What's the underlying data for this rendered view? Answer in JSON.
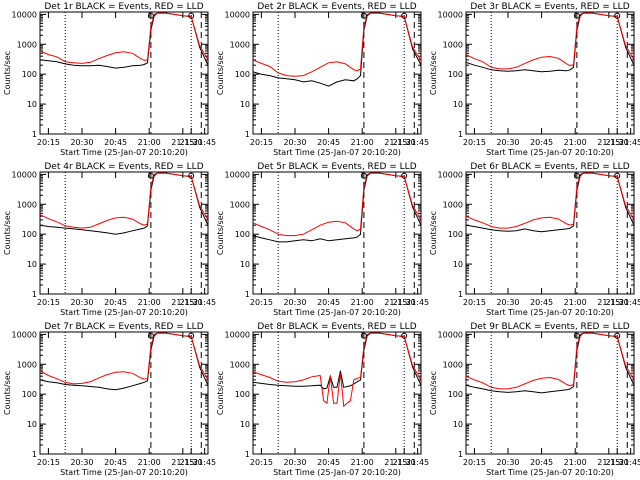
{
  "colors": {
    "events": "#000000",
    "lld": "#ff0000",
    "axes": "#000000",
    "background": "#ffffff"
  },
  "common": {
    "ylabel": "Counts/sec",
    "xlabel": "Start Time (25-Jan-07 20:10:20)",
    "y_scale": "log",
    "ylim": [
      1,
      12000
    ],
    "y_ticks": [
      1,
      10,
      100,
      1000,
      10000
    ],
    "y_tick_labels": [
      "1",
      "10",
      "100",
      "1000",
      "10000"
    ],
    "xlim": [
      0,
      100
    ],
    "x_ticks": [
      5,
      25,
      45,
      65,
      85
    ],
    "x_tick_labels_default": [
      "20:15",
      "20:30",
      "20:45",
      "21:00",
      "21:15"
    ],
    "x_tick_labels_alt": [
      "20:15",
      "20:30",
      "20:45",
      "21:00",
      "21:15"
    ],
    "extra_x_labels": [
      "21:30",
      "21:45"
    ],
    "dotted_lines_x": [
      15,
      90
    ],
    "dashed_lines_x": [
      66,
      96
    ]
  },
  "chart_data": [
    {
      "type": "line",
      "title": "Det 1r BLACK = Events, RED = LLD",
      "x_tick_labels": [
        "20:15",
        "20:30",
        "20:45",
        "21:00",
        "21:15"
      ],
      "series": [
        {
          "name": "Events",
          "x": [
            0,
            5,
            10,
            15,
            20,
            25,
            30,
            35,
            40,
            45,
            50,
            55,
            60,
            62,
            64,
            66,
            68,
            70,
            75,
            80,
            85,
            90,
            95,
            100
          ],
          "values": [
            300,
            280,
            260,
            220,
            200,
            190,
            190,
            200,
            180,
            160,
            170,
            190,
            200,
            210,
            240,
            3000,
            9000,
            11000,
            11000,
            10000,
            9000,
            8500,
            800,
            200
          ]
        },
        {
          "name": "LLD",
          "x": [
            0,
            5,
            10,
            15,
            20,
            25,
            30,
            35,
            40,
            45,
            50,
            55,
            60,
            62,
            64,
            66,
            68,
            70,
            75,
            80,
            85,
            90,
            95,
            100
          ],
          "values": [
            600,
            450,
            380,
            260,
            240,
            230,
            250,
            330,
            420,
            520,
            560,
            500,
            330,
            290,
            300,
            4000,
            10000,
            11000,
            11000,
            10000,
            9000,
            8500,
            900,
            300
          ]
        }
      ]
    },
    {
      "type": "line",
      "title": "Det 2r BLACK = Events, RED = LLD",
      "x_tick_labels": [
        "20:15",
        "20:30",
        "20:45",
        "21:00",
        "21:15"
      ],
      "series": [
        {
          "name": "Events",
          "x": [
            0,
            5,
            10,
            15,
            20,
            25,
            30,
            35,
            40,
            45,
            50,
            55,
            60,
            62,
            64,
            66,
            68,
            70,
            75,
            80,
            85,
            90,
            95,
            100
          ],
          "values": [
            120,
            100,
            90,
            75,
            70,
            65,
            55,
            60,
            50,
            40,
            55,
            65,
            60,
            70,
            90,
            3000,
            9000,
            11000,
            11000,
            10000,
            9000,
            8500,
            700,
            200
          ]
        },
        {
          "name": "LLD",
          "x": [
            0,
            5,
            10,
            15,
            20,
            25,
            30,
            35,
            40,
            45,
            50,
            55,
            60,
            62,
            64,
            66,
            68,
            70,
            75,
            80,
            85,
            90,
            95,
            100
          ],
          "values": [
            300,
            230,
            180,
            110,
            90,
            85,
            90,
            120,
            170,
            240,
            260,
            220,
            140,
            130,
            150,
            4000,
            10000,
            11000,
            11000,
            10000,
            9000,
            8500,
            800,
            280
          ]
        }
      ]
    },
    {
      "type": "line",
      "title": "Det 3r BLACK = Events, RED = LLD",
      "x_tick_labels": [
        "20:15",
        "20:30",
        "20:45",
        "21:00",
        "21:15"
      ],
      "series": [
        {
          "name": "Events",
          "x": [
            0,
            5,
            10,
            15,
            20,
            25,
            30,
            35,
            40,
            45,
            50,
            55,
            60,
            62,
            64,
            66,
            68,
            70,
            75,
            80,
            85,
            90,
            95,
            100
          ],
          "values": [
            250,
            200,
            170,
            140,
            130,
            125,
            130,
            140,
            130,
            120,
            125,
            135,
            130,
            140,
            170,
            3000,
            9000,
            11000,
            11000,
            10000,
            9000,
            8500,
            800,
            200
          ]
        },
        {
          "name": "LLD",
          "x": [
            0,
            5,
            10,
            15,
            20,
            25,
            30,
            35,
            40,
            45,
            50,
            55,
            60,
            62,
            64,
            66,
            68,
            70,
            75,
            80,
            85,
            90,
            95,
            100
          ],
          "values": [
            450,
            330,
            260,
            170,
            150,
            150,
            170,
            230,
            300,
            370,
            390,
            340,
            220,
            190,
            210,
            4000,
            10000,
            11000,
            11000,
            10000,
            9000,
            8500,
            900,
            300
          ]
        }
      ]
    },
    {
      "type": "line",
      "title": "Det 4r BLACK = Events, RED = LLD",
      "x_tick_labels": [
        "20:15",
        "20:30",
        "20:45",
        "21:00",
        "21:15"
      ],
      "series": [
        {
          "name": "Events",
          "x": [
            0,
            5,
            10,
            15,
            20,
            25,
            30,
            35,
            40,
            45,
            50,
            55,
            60,
            62,
            64,
            66,
            68,
            70,
            75,
            80,
            85,
            90,
            95,
            100
          ],
          "values": [
            200,
            180,
            170,
            160,
            150,
            140,
            130,
            120,
            110,
            100,
            110,
            130,
            150,
            160,
            190,
            3000,
            9000,
            11000,
            11000,
            10000,
            9000,
            8500,
            800,
            200
          ]
        },
        {
          "name": "LLD",
          "x": [
            0,
            5,
            10,
            15,
            20,
            25,
            30,
            35,
            40,
            45,
            50,
            55,
            60,
            62,
            64,
            66,
            68,
            70,
            75,
            80,
            85,
            90,
            95,
            100
          ],
          "values": [
            450,
            330,
            260,
            190,
            170,
            160,
            170,
            220,
            290,
            350,
            370,
            320,
            220,
            200,
            220,
            4000,
            10000,
            11000,
            11000,
            10000,
            9000,
            8500,
            900,
            300
          ]
        }
      ]
    },
    {
      "type": "line",
      "title": "Det 5r BLACK = Events, RED = LLD",
      "x_tick_labels": [
        "20:15",
        "20:30",
        "20:45",
        "21:00",
        "21:15"
      ],
      "series": [
        {
          "name": "Events",
          "x": [
            0,
            5,
            10,
            15,
            20,
            25,
            30,
            35,
            40,
            45,
            50,
            55,
            60,
            62,
            64,
            66,
            68,
            70,
            75,
            80,
            85,
            90,
            95,
            100
          ],
          "values": [
            90,
            75,
            65,
            55,
            55,
            60,
            65,
            60,
            70,
            60,
            65,
            70,
            75,
            80,
            100,
            3000,
            9000,
            11000,
            11000,
            10000,
            9000,
            8500,
            800,
            200
          ]
        },
        {
          "name": "LLD",
          "x": [
            0,
            5,
            10,
            15,
            20,
            25,
            30,
            35,
            40,
            45,
            50,
            55,
            60,
            62,
            64,
            66,
            68,
            70,
            75,
            80,
            85,
            90,
            95,
            100
          ],
          "values": [
            240,
            180,
            140,
            100,
            90,
            90,
            100,
            140,
            200,
            250,
            270,
            240,
            150,
            130,
            150,
            4000,
            10000,
            11000,
            11000,
            10000,
            9000,
            8500,
            900,
            300
          ]
        }
      ]
    },
    {
      "type": "line",
      "title": "Det 6r BLACK = Events, RED = LLD",
      "x_tick_labels": [
        "20:15",
        "20:30",
        "20:45",
        "21:00",
        "21:15"
      ],
      "series": [
        {
          "name": "Events",
          "x": [
            0,
            5,
            10,
            15,
            20,
            25,
            30,
            35,
            40,
            45,
            50,
            55,
            60,
            62,
            64,
            66,
            68,
            70,
            75,
            80,
            85,
            90,
            95,
            100
          ],
          "values": [
            200,
            180,
            160,
            140,
            130,
            125,
            130,
            150,
            130,
            120,
            130,
            140,
            150,
            160,
            190,
            3000,
            9000,
            11000,
            11000,
            10000,
            9000,
            8500,
            800,
            200
          ]
        },
        {
          "name": "LLD",
          "x": [
            0,
            5,
            10,
            15,
            20,
            25,
            30,
            35,
            40,
            45,
            50,
            55,
            60,
            62,
            64,
            66,
            68,
            70,
            75,
            80,
            85,
            90,
            95,
            100
          ],
          "values": [
            400,
            300,
            240,
            180,
            160,
            160,
            180,
            230,
            300,
            350,
            370,
            320,
            220,
            200,
            220,
            4000,
            10000,
            11000,
            11000,
            10000,
            9000,
            8500,
            900,
            300
          ]
        }
      ]
    },
    {
      "type": "line",
      "title": "Det 7r BLACK = Events, RED = LLD",
      "x_tick_labels": [
        "20:15",
        "20:30",
        "20:45",
        "21:00",
        "21:15"
      ],
      "series": [
        {
          "name": "Events",
          "x": [
            0,
            5,
            10,
            15,
            20,
            25,
            30,
            35,
            40,
            45,
            50,
            55,
            60,
            62,
            64,
            66,
            68,
            70,
            75,
            80,
            85,
            90,
            95,
            100
          ],
          "values": [
            300,
            260,
            240,
            210,
            200,
            190,
            180,
            170,
            150,
            140,
            160,
            190,
            230,
            250,
            280,
            3000,
            9000,
            11000,
            11000,
            10000,
            9000,
            8500,
            800,
            200
          ]
        },
        {
          "name": "LLD",
          "x": [
            0,
            5,
            10,
            15,
            20,
            25,
            30,
            35,
            40,
            45,
            50,
            55,
            60,
            62,
            64,
            66,
            68,
            70,
            75,
            80,
            85,
            90,
            95,
            100
          ],
          "values": [
            600,
            420,
            330,
            250,
            220,
            230,
            260,
            350,
            450,
            540,
            560,
            500,
            350,
            320,
            330,
            4000,
            10000,
            11000,
            11000,
            10000,
            9000,
            8500,
            900,
            300
          ]
        }
      ]
    },
    {
      "type": "line",
      "title": "Det 8r BLACK = Events, RED = LLD",
      "x_tick_labels": [
        "20:15",
        "20:30",
        "20:45",
        "21:00",
        "21:15"
      ],
      "series": [
        {
          "name": "Events",
          "x": [
            0,
            5,
            10,
            15,
            20,
            25,
            30,
            35,
            40,
            42,
            44,
            46,
            48,
            50,
            52,
            54,
            56,
            58,
            60,
            62,
            64,
            66,
            68,
            70,
            75,
            80,
            85,
            90,
            95,
            100
          ],
          "values": [
            250,
            230,
            210,
            200,
            190,
            185,
            185,
            190,
            200,
            150,
            160,
            400,
            170,
            170,
            600,
            170,
            180,
            190,
            220,
            260,
            300,
            3000,
            9000,
            11000,
            11000,
            10000,
            9000,
            8500,
            800,
            200
          ]
        },
        {
          "name": "LLD",
          "x": [
            0,
            5,
            10,
            15,
            20,
            25,
            30,
            35,
            40,
            42,
            44,
            46,
            48,
            50,
            52,
            54,
            56,
            58,
            60,
            62,
            64,
            66,
            68,
            70,
            75,
            80,
            85,
            90,
            95,
            100
          ],
          "values": [
            550,
            450,
            360,
            270,
            250,
            260,
            300,
            380,
            420,
            60,
            50,
            400,
            50,
            50,
            500,
            40,
            50,
            60,
            300,
            340,
            360,
            4000,
            10000,
            11000,
            11000,
            10000,
            9000,
            8500,
            900,
            300
          ]
        }
      ]
    },
    {
      "type": "line",
      "title": "Det 9r BLACK = Events, RED = LLD",
      "x_tick_labels": [
        "20:15",
        "20:30",
        "20:45",
        "21:00",
        "21:15"
      ],
      "series": [
        {
          "name": "Events",
          "x": [
            0,
            5,
            10,
            15,
            20,
            25,
            30,
            35,
            40,
            45,
            50,
            55,
            60,
            62,
            64,
            66,
            68,
            70,
            75,
            80,
            85,
            90,
            95,
            100
          ],
          "values": [
            200,
            170,
            150,
            130,
            120,
            115,
            120,
            130,
            120,
            110,
            120,
            130,
            140,
            150,
            180,
            3000,
            9000,
            11000,
            11000,
            10000,
            9000,
            8500,
            800,
            200
          ]
        },
        {
          "name": "LLD",
          "x": [
            0,
            5,
            10,
            15,
            20,
            25,
            30,
            35,
            40,
            45,
            50,
            55,
            60,
            62,
            64,
            66,
            68,
            70,
            75,
            80,
            85,
            90,
            95,
            100
          ],
          "values": [
            400,
            300,
            240,
            170,
            150,
            150,
            170,
            220,
            290,
            340,
            360,
            310,
            210,
            190,
            210,
            4000,
            10000,
            11000,
            11000,
            10000,
            9000,
            8500,
            900,
            300
          ]
        }
      ]
    }
  ]
}
